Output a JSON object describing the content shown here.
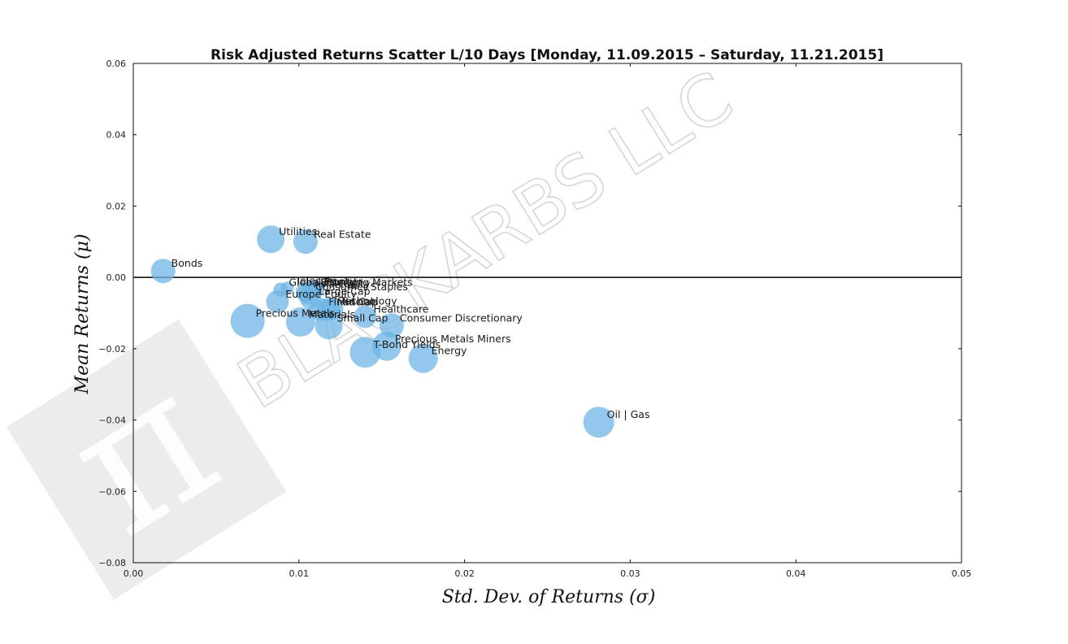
{
  "chart_data": {
    "type": "scatter",
    "title": "Risk Adjusted Returns Scatter L/10 Days [Monday, 11.09.2015 – Saturday, 11.21.2015]",
    "xlabel": "Std. Dev. of Returns  (σ)",
    "ylabel": "Mean Returns  (μ)",
    "xlim": [
      0.0,
      0.05
    ],
    "ylim": [
      -0.08,
      0.06
    ],
    "x_ticks": [
      "0.00",
      "0.01",
      "0.02",
      "0.03",
      "0.04",
      "0.05"
    ],
    "y_ticks": [
      "0.06",
      "0.04",
      "0.02",
      "0.00",
      "−0.02",
      "−0.04",
      "−0.06",
      "−0.08"
    ],
    "zero_line": 0.0,
    "grid": false,
    "marker_color": "#6fb6e6",
    "points": [
      {
        "label": "Bonds",
        "x": 0.0018,
        "y": 0.0018,
        "size": 15
      },
      {
        "label": "Utilities",
        "x": 0.0083,
        "y": 0.0107,
        "size": 17
      },
      {
        "label": "Real Estate",
        "x": 0.0104,
        "y": 0.01,
        "size": 15
      },
      {
        "label": "Telecom",
        "x": 0.0093,
        "y": -0.003,
        "size": 8
      },
      {
        "label": "Global Equity",
        "x": 0.0089,
        "y": -0.0035,
        "size": 9
      },
      {
        "label": "Asia Equity",
        "x": 0.0104,
        "y": -0.004,
        "size": 12
      },
      {
        "label": "Emerging Markets",
        "x": 0.0108,
        "y": -0.0035,
        "size": 11
      },
      {
        "label": "Frontier",
        "x": 0.011,
        "y": -0.0033,
        "size": 11
      },
      {
        "label": "Consumer Staples",
        "x": 0.0105,
        "y": -0.0048,
        "size": 12
      },
      {
        "label": "Large Cap",
        "x": 0.0107,
        "y": -0.006,
        "size": 13
      },
      {
        "label": "Europe Equity",
        "x": 0.0087,
        "y": -0.0068,
        "size": 14
      },
      {
        "label": "Financials",
        "x": 0.0113,
        "y": -0.009,
        "size": 14
      },
      {
        "label": "Mid Cap",
        "x": 0.0118,
        "y": -0.009,
        "size": 14
      },
      {
        "label": "Technology",
        "x": 0.012,
        "y": -0.0088,
        "size": 14
      },
      {
        "label": "Precious Metals",
        "x": 0.0069,
        "y": -0.0122,
        "size": 21
      },
      {
        "label": "Materials",
        "x": 0.0101,
        "y": -0.0125,
        "size": 18
      },
      {
        "label": "Small Cap",
        "x": 0.0118,
        "y": -0.0135,
        "size": 17
      },
      {
        "label": "Healthcare",
        "x": 0.014,
        "y": -0.011,
        "size": 14
      },
      {
        "label": "Consumer Discretionary",
        "x": 0.0156,
        "y": -0.0135,
        "size": 15
      },
      {
        "label": "Precious Metals Miners",
        "x": 0.0153,
        "y": -0.0193,
        "size": 18
      },
      {
        "label": "T-Bond Yields",
        "x": 0.014,
        "y": -0.021,
        "size": 19
      },
      {
        "label": "Energy",
        "x": 0.0175,
        "y": -0.0227,
        "size": 18
      },
      {
        "label": "Oil | Gas",
        "x": 0.0281,
        "y": -0.0406,
        "size": 19
      }
    ]
  },
  "watermark": {
    "text": "BLACKARBS LLC",
    "logo_glyph": "π"
  }
}
